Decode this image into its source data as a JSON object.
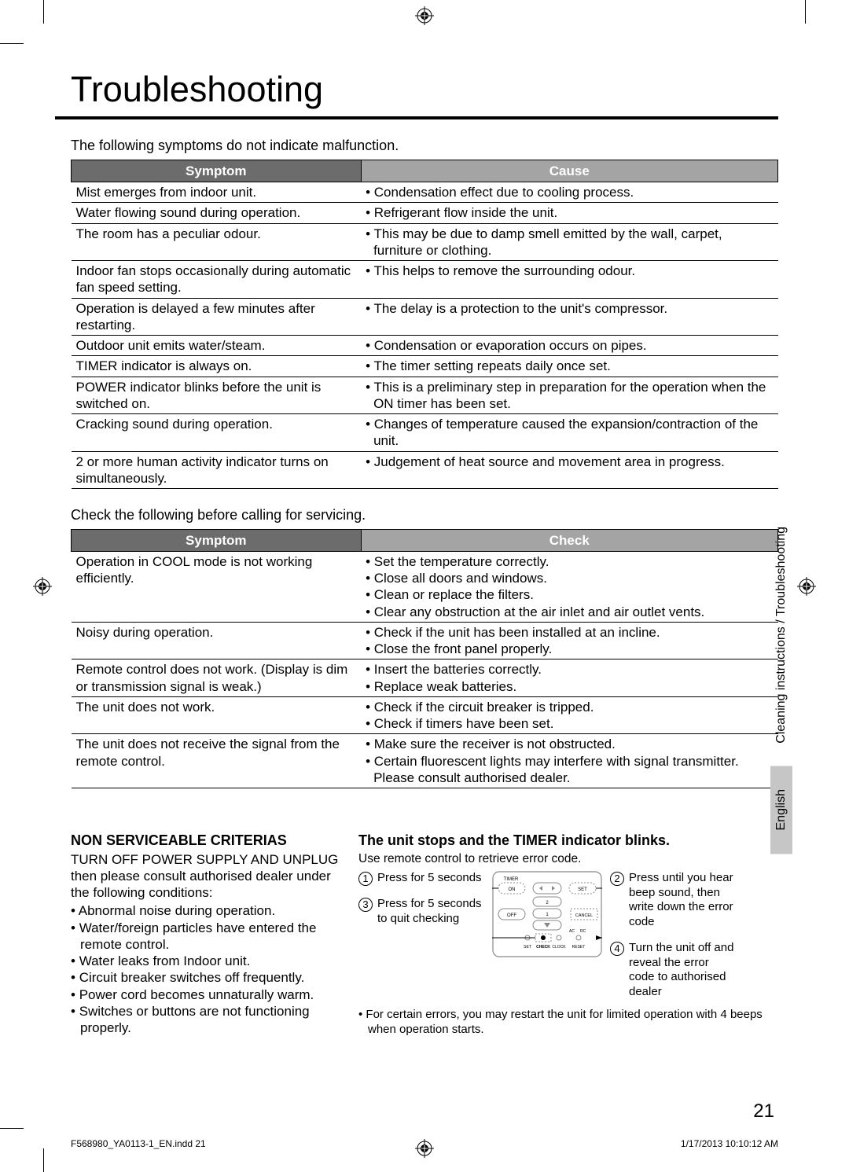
{
  "title": "Troubleshooting",
  "intro1": "The following symptoms do not indicate malfunction.",
  "intro2": "Check the following before calling for servicing.",
  "table1": {
    "headers": [
      "Symptom",
      "Cause"
    ],
    "rows": [
      {
        "symptom": "Mist emerges from indoor unit.",
        "cause": [
          "Condensation effect due to cooling process."
        ]
      },
      {
        "symptom": "Water flowing sound during operation.",
        "cause": [
          "Refrigerant flow inside the unit."
        ]
      },
      {
        "symptom": "The room has a peculiar odour.",
        "cause": [
          "This may be due to damp smell emitted by the wall, carpet, furniture or clothing."
        ]
      },
      {
        "symptom": "Indoor fan stops occasionally during automatic fan speed setting.",
        "cause": [
          "This helps to remove the surrounding odour."
        ]
      },
      {
        "symptom": "Operation is delayed a few minutes after restarting.",
        "cause": [
          "The delay is a protection to the unit's compressor."
        ]
      },
      {
        "symptom": "Outdoor unit emits water/steam.",
        "cause": [
          "Condensation or evaporation occurs on pipes."
        ]
      },
      {
        "symptom": "TIMER indicator is always on.",
        "cause": [
          "The timer setting repeats daily once set."
        ]
      },
      {
        "symptom": "POWER indicator blinks before the unit is switched on.",
        "cause": [
          "This is a preliminary step in preparation for the operation when the ON timer has been set."
        ]
      },
      {
        "symptom": "Cracking sound during operation.",
        "cause": [
          "Changes of temperature caused the expansion/contraction of the unit."
        ]
      },
      {
        "symptom": "2 or more human activity indicator turns on simultaneously.",
        "cause": [
          "Judgement of heat source and movement area in progress."
        ]
      }
    ]
  },
  "table2": {
    "headers": [
      "Symptom",
      "Check"
    ],
    "rows": [
      {
        "symptom": "Operation in COOL mode is not working efficiently.",
        "cause": [
          "Set the temperature correctly.",
          "Close all doors and windows.",
          "Clean or replace the filters.",
          "Clear any obstruction at the air inlet and air outlet vents."
        ]
      },
      {
        "symptom": "Noisy during operation.",
        "cause": [
          "Check if the unit has been installed at an incline.",
          "Close the front panel properly."
        ]
      },
      {
        "symptom": "Remote control does not work.\n(Display is dim or transmission signal is weak.)",
        "cause": [
          "Insert the batteries correctly.",
          "Replace weak batteries."
        ]
      },
      {
        "symptom": "The unit does not work.",
        "cause": [
          "Check if the circuit breaker is tripped.",
          "Check if timers have been set."
        ]
      },
      {
        "symptom": "The unit does not receive the signal from the remote control.",
        "cause": [
          "Make sure the receiver is not obstructed.",
          "Certain fluorescent lights may interfere with signal transmitter. Please consult authorised dealer."
        ]
      }
    ]
  },
  "nsc": {
    "heading": "NON SERVICEABLE CRITERIAS",
    "lead": "TURN OFF POWER SUPPLY AND UNPLUG then please consult authorised dealer under the following conditions:",
    "items": [
      "Abnormal noise during operation.",
      "Water/foreign particles have entered the remote control.",
      "Water leaks from Indoor unit.",
      "Circuit breaker switches off frequently.",
      "Power cord becomes unnaturally warm.",
      "Switches or buttons are not functioning properly."
    ]
  },
  "timer": {
    "heading": "The unit stops and the TIMER indicator blinks.",
    "sub": "Use remote control to retrieve error code.",
    "steps": {
      "s1": "Press for 5 seconds",
      "s2": "Press until you hear beep sound, then write down the error code",
      "s3": "Press for 5 seconds to quit checking",
      "s4": "Turn the unit off and reveal the error code to authorised dealer"
    },
    "note": "For certain errors, you may restart the unit for limited operation with 4 beeps when operation starts.",
    "remote_labels": {
      "timer": "TIMER",
      "on": "ON",
      "off": "OFF",
      "set": "SET",
      "cancel": "CANCEL",
      "set2": "SET",
      "check": "CHECK",
      "clock": "CLOCK",
      "reset": "RESET",
      "ac": "AC",
      "rc": "RC"
    }
  },
  "side_tabs": {
    "section": "Cleaning instructions / Troubleshooting",
    "lang": "English"
  },
  "page_number": "21",
  "footer_left": "F568980_YA0113-1_EN.indd   21",
  "footer_right": "1/17/2013   10:10:12 AM",
  "colors": {
    "header_dark": "#6c6c6c",
    "header_light": "#a4a4a4",
    "tab_bg": "#c6c6c6"
  }
}
